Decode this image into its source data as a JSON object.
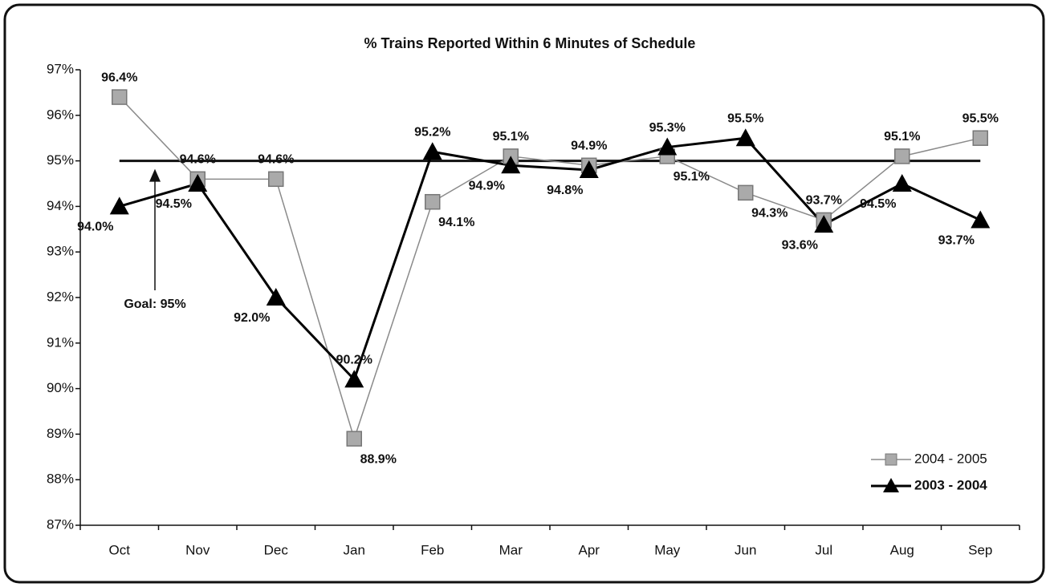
{
  "chart_data": {
    "type": "line",
    "title": "% Trains Reported Within 6 Minutes of Schedule",
    "categories": [
      "Oct",
      "Nov",
      "Dec",
      "Jan",
      "Feb",
      "Mar",
      "Apr",
      "May",
      "Jun",
      "Jul",
      "Aug",
      "Sep"
    ],
    "series": [
      {
        "name": "2004 - 2005",
        "color": "#8a8a8a",
        "marker": "square",
        "values": [
          96.4,
          94.6,
          94.6,
          88.9,
          94.1,
          95.1,
          94.9,
          95.1,
          94.3,
          93.7,
          95.1,
          95.5
        ],
        "value_labels": [
          "96.4%",
          "94.6%",
          "94.6%",
          "88.9%",
          "94.1%",
          "95.1%",
          "94.9%",
          "95.1%",
          "94.3%",
          "93.7%",
          "95.1%",
          "95.5%"
        ]
      },
      {
        "name": "2003 - 2004",
        "color": "#000000",
        "marker": "triangle",
        "values": [
          94.0,
          94.5,
          92.0,
          90.2,
          95.2,
          94.9,
          94.8,
          95.3,
          95.5,
          93.6,
          94.5,
          93.7
        ],
        "value_labels": [
          "94.0%",
          "94.5%",
          "92.0%",
          "90.2%",
          "95.2%",
          "94.9%",
          "94.8%",
          "95.3%",
          "95.5%",
          "93.6%",
          "94.5%",
          "93.7%"
        ]
      }
    ],
    "goal": {
      "value": 95,
      "label": "Goal: 95%"
    },
    "ylim": [
      87,
      97
    ],
    "yticks": [
      {
        "value": 87,
        "label": "87%"
      },
      {
        "value": 88,
        "label": "88%"
      },
      {
        "value": 89,
        "label": "89%"
      },
      {
        "value": 90,
        "label": "90%"
      },
      {
        "value": 91,
        "label": "91%"
      },
      {
        "value": 92,
        "label": "92%"
      },
      {
        "value": 93,
        "label": "93%"
      },
      {
        "value": 94,
        "label": "94%"
      },
      {
        "value": 95,
        "label": "95%"
      },
      {
        "value": 96,
        "label": "96%"
      },
      {
        "value": 97,
        "label": "97%"
      }
    ],
    "grid": false,
    "legend": "lower right"
  }
}
